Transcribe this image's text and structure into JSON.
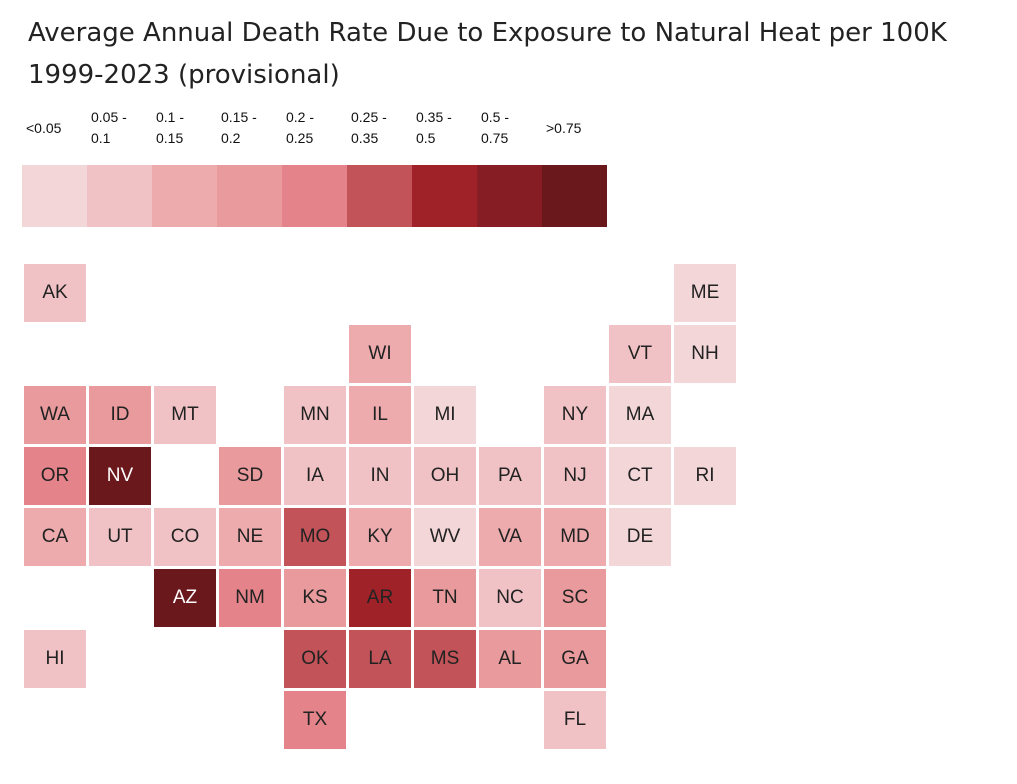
{
  "title": {
    "line1": "Average Annual Death Rate Due to Exposure to Natural Heat per 100K",
    "line2": "1999-2023 (provisional)"
  },
  "legend": [
    {
      "label": "<0.05",
      "color": "#f3d6d8"
    },
    {
      "label": "0.05 -\n0.1",
      "color": "#f1c2c5"
    },
    {
      "label": "0.1 -\n0.15",
      "color": "#edabad"
    },
    {
      "label": "0.15 -\n0.2",
      "color": "#e99a9c"
    },
    {
      "label": "0.2 -\n0.25",
      "color": "#e4848a"
    },
    {
      "label": "0.25 -\n0.35",
      "color": "#c25358"
    },
    {
      "label": "0.35 -\n0.5",
      "color": "#9e2228"
    },
    {
      "label": "0.5 -\n0.75",
      "color": "#861c24"
    },
    {
      "label": ">0.75",
      "color": "#6b181d"
    }
  ],
  "states": [
    {
      "abbr": "AK",
      "bin": 1
    },
    {
      "abbr": "ME",
      "bin": 0
    },
    {
      "abbr": "WI",
      "bin": 2
    },
    {
      "abbr": "VT",
      "bin": 1
    },
    {
      "abbr": "NH",
      "bin": 0
    },
    {
      "abbr": "WA",
      "bin": 3
    },
    {
      "abbr": "ID",
      "bin": 3
    },
    {
      "abbr": "MT",
      "bin": 1
    },
    {
      "abbr": "MN",
      "bin": 1
    },
    {
      "abbr": "IL",
      "bin": 2
    },
    {
      "abbr": "MI",
      "bin": 0
    },
    {
      "abbr": "NY",
      "bin": 1
    },
    {
      "abbr": "MA",
      "bin": 0
    },
    {
      "abbr": "OR",
      "bin": 4
    },
    {
      "abbr": "NV",
      "bin": 8
    },
    {
      "abbr": "SD",
      "bin": 3
    },
    {
      "abbr": "IA",
      "bin": 1
    },
    {
      "abbr": "IN",
      "bin": 1
    },
    {
      "abbr": "OH",
      "bin": 1
    },
    {
      "abbr": "PA",
      "bin": 1
    },
    {
      "abbr": "NJ",
      "bin": 1
    },
    {
      "abbr": "CT",
      "bin": 0
    },
    {
      "abbr": "RI",
      "bin": 0
    },
    {
      "abbr": "CA",
      "bin": 2
    },
    {
      "abbr": "UT",
      "bin": 1
    },
    {
      "abbr": "CO",
      "bin": 1
    },
    {
      "abbr": "NE",
      "bin": 2
    },
    {
      "abbr": "MO",
      "bin": 5
    },
    {
      "abbr": "KY",
      "bin": 2
    },
    {
      "abbr": "WV",
      "bin": 0
    },
    {
      "abbr": "VA",
      "bin": 2
    },
    {
      "abbr": "MD",
      "bin": 2
    },
    {
      "abbr": "DE",
      "bin": 0
    },
    {
      "abbr": "AZ",
      "bin": 8
    },
    {
      "abbr": "NM",
      "bin": 4
    },
    {
      "abbr": "KS",
      "bin": 3
    },
    {
      "abbr": "AR",
      "bin": 6
    },
    {
      "abbr": "TN",
      "bin": 3
    },
    {
      "abbr": "NC",
      "bin": 1
    },
    {
      "abbr": "SC",
      "bin": 3
    },
    {
      "abbr": "HI",
      "bin": 1
    },
    {
      "abbr": "OK",
      "bin": 5
    },
    {
      "abbr": "LA",
      "bin": 5
    },
    {
      "abbr": "MS",
      "bin": 5
    },
    {
      "abbr": "AL",
      "bin": 3
    },
    {
      "abbr": "GA",
      "bin": 3
    },
    {
      "abbr": "TX",
      "bin": 4
    },
    {
      "abbr": "FL",
      "bin": 1
    }
  ]
}
